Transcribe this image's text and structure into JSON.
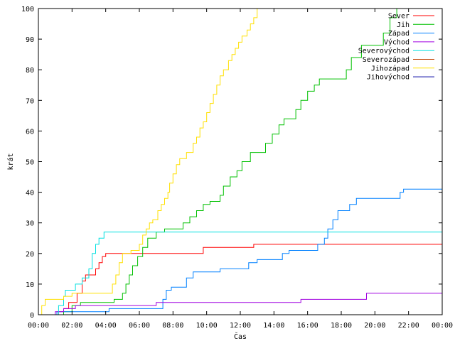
{
  "chart_data": {
    "type": "line",
    "xlabel": "Čas",
    "ylabel": "krát",
    "xlim": [
      0,
      24
    ],
    "ylim": [
      0,
      100
    ],
    "grid": false,
    "legend_position": "top-right",
    "x_ticks": [
      {
        "value": 0,
        "label": "00:00"
      },
      {
        "value": 2,
        "label": "02:00"
      },
      {
        "value": 4,
        "label": "04:00"
      },
      {
        "value": 6,
        "label": "06:00"
      },
      {
        "value": 8,
        "label": "08:00"
      },
      {
        "value": 10,
        "label": "10:00"
      },
      {
        "value": 12,
        "label": "12:00"
      },
      {
        "value": 14,
        "label": "14:00"
      },
      {
        "value": 16,
        "label": "16:00"
      },
      {
        "value": 18,
        "label": "18:00"
      },
      {
        "value": 20,
        "label": "20:00"
      },
      {
        "value": 22,
        "label": "22:00"
      },
      {
        "value": 24,
        "label": "00:00"
      }
    ],
    "y_ticks": [
      {
        "value": 0,
        "label": "0"
      },
      {
        "value": 10,
        "label": "10"
      },
      {
        "value": 20,
        "label": "20"
      },
      {
        "value": 30,
        "label": "30"
      },
      {
        "value": 40,
        "label": "40"
      },
      {
        "value": 50,
        "label": "50"
      },
      {
        "value": 60,
        "label": "60"
      },
      {
        "value": 70,
        "label": "70"
      },
      {
        "value": 80,
        "label": "80"
      },
      {
        "value": 90,
        "label": "90"
      },
      {
        "value": 100,
        "label": "100"
      }
    ],
    "series": [
      {
        "name": "Sever",
        "color": "#ff0000",
        "points": [
          [
            0,
            0
          ],
          [
            1.2,
            0
          ],
          [
            1.2,
            1
          ],
          [
            1.5,
            1
          ],
          [
            1.5,
            2
          ],
          [
            1.8,
            2
          ],
          [
            1.8,
            4
          ],
          [
            2.3,
            4
          ],
          [
            2.3,
            7
          ],
          [
            2.6,
            7
          ],
          [
            2.6,
            11
          ],
          [
            2.8,
            11
          ],
          [
            2.8,
            13
          ],
          [
            3.4,
            13
          ],
          [
            3.4,
            15
          ],
          [
            3.6,
            15
          ],
          [
            3.6,
            17
          ],
          [
            3.8,
            17
          ],
          [
            3.8,
            19
          ],
          [
            4.0,
            19
          ],
          [
            4.0,
            20
          ],
          [
            9.8,
            20
          ],
          [
            9.8,
            22
          ],
          [
            12.8,
            22
          ],
          [
            12.8,
            23
          ],
          [
            24,
            23
          ]
        ]
      },
      {
        "name": "Jih",
        "color": "#00c000",
        "points": [
          [
            0,
            0
          ],
          [
            1.5,
            0
          ],
          [
            1.5,
            1
          ],
          [
            2.0,
            1
          ],
          [
            2.0,
            3
          ],
          [
            2.5,
            3
          ],
          [
            2.5,
            4
          ],
          [
            4.5,
            4
          ],
          [
            4.5,
            5
          ],
          [
            5.0,
            5
          ],
          [
            5.0,
            7
          ],
          [
            5.2,
            7
          ],
          [
            5.2,
            10
          ],
          [
            5.4,
            10
          ],
          [
            5.4,
            13
          ],
          [
            5.6,
            13
          ],
          [
            5.6,
            16
          ],
          [
            5.9,
            16
          ],
          [
            5.9,
            19
          ],
          [
            6.2,
            19
          ],
          [
            6.2,
            22
          ],
          [
            6.5,
            22
          ],
          [
            6.5,
            25
          ],
          [
            7.0,
            25
          ],
          [
            7.0,
            27
          ],
          [
            7.5,
            27
          ],
          [
            7.5,
            28
          ],
          [
            8.6,
            28
          ],
          [
            8.6,
            30
          ],
          [
            9.0,
            30
          ],
          [
            9.0,
            32
          ],
          [
            9.4,
            32
          ],
          [
            9.4,
            34
          ],
          [
            9.8,
            34
          ],
          [
            9.8,
            36
          ],
          [
            10.2,
            36
          ],
          [
            10.2,
            37
          ],
          [
            10.8,
            37
          ],
          [
            10.8,
            39
          ],
          [
            11.0,
            39
          ],
          [
            11.0,
            42
          ],
          [
            11.4,
            42
          ],
          [
            11.4,
            45
          ],
          [
            11.8,
            45
          ],
          [
            11.8,
            47
          ],
          [
            12.1,
            47
          ],
          [
            12.1,
            50
          ],
          [
            12.6,
            50
          ],
          [
            12.6,
            53
          ],
          [
            13.5,
            53
          ],
          [
            13.5,
            56
          ],
          [
            13.9,
            56
          ],
          [
            13.9,
            59
          ],
          [
            14.3,
            59
          ],
          [
            14.3,
            62
          ],
          [
            14.6,
            62
          ],
          [
            14.6,
            64
          ],
          [
            15.3,
            64
          ],
          [
            15.3,
            67
          ],
          [
            15.6,
            67
          ],
          [
            15.6,
            70
          ],
          [
            16.0,
            70
          ],
          [
            16.0,
            73
          ],
          [
            16.4,
            73
          ],
          [
            16.4,
            75
          ],
          [
            16.7,
            75
          ],
          [
            16.7,
            77
          ],
          [
            18.3,
            77
          ],
          [
            18.3,
            80
          ],
          [
            18.6,
            80
          ],
          [
            18.6,
            84
          ],
          [
            19.2,
            84
          ],
          [
            19.2,
            88
          ],
          [
            20.5,
            88
          ],
          [
            20.5,
            92
          ],
          [
            20.9,
            92
          ],
          [
            20.9,
            97
          ],
          [
            21.3,
            97
          ],
          [
            21.3,
            100
          ],
          [
            24,
            100
          ]
        ]
      },
      {
        "name": "Západ",
        "color": "#0080ff",
        "points": [
          [
            0,
            0
          ],
          [
            1.1,
            0
          ],
          [
            1.1,
            1
          ],
          [
            4.2,
            1
          ],
          [
            4.2,
            2
          ],
          [
            7.4,
            2
          ],
          [
            7.4,
            5
          ],
          [
            7.6,
            5
          ],
          [
            7.6,
            8
          ],
          [
            7.9,
            8
          ],
          [
            7.9,
            9
          ],
          [
            8.8,
            9
          ],
          [
            8.8,
            12
          ],
          [
            9.2,
            12
          ],
          [
            9.2,
            14
          ],
          [
            10.8,
            14
          ],
          [
            10.8,
            15
          ],
          [
            12.5,
            15
          ],
          [
            12.5,
            17
          ],
          [
            13.0,
            17
          ],
          [
            13.0,
            18
          ],
          [
            14.5,
            18
          ],
          [
            14.5,
            20
          ],
          [
            14.9,
            20
          ],
          [
            14.9,
            21
          ],
          [
            16.6,
            21
          ],
          [
            16.6,
            23
          ],
          [
            17.0,
            23
          ],
          [
            17.0,
            25
          ],
          [
            17.2,
            25
          ],
          [
            17.2,
            28
          ],
          [
            17.5,
            28
          ],
          [
            17.5,
            31
          ],
          [
            17.8,
            31
          ],
          [
            17.8,
            34
          ],
          [
            18.5,
            34
          ],
          [
            18.5,
            36
          ],
          [
            18.9,
            36
          ],
          [
            18.9,
            38
          ],
          [
            21.5,
            38
          ],
          [
            21.5,
            40
          ],
          [
            21.7,
            40
          ],
          [
            21.7,
            41
          ],
          [
            24,
            41
          ]
        ]
      },
      {
        "name": "Východ",
        "color": "#a000e0",
        "points": [
          [
            0,
            0
          ],
          [
            1.0,
            0
          ],
          [
            1.0,
            1
          ],
          [
            1.5,
            1
          ],
          [
            1.5,
            2
          ],
          [
            2.2,
            2
          ],
          [
            2.2,
            3
          ],
          [
            7.0,
            3
          ],
          [
            7.0,
            4
          ],
          [
            15.6,
            4
          ],
          [
            15.6,
            5
          ],
          [
            19.5,
            5
          ],
          [
            19.5,
            7
          ],
          [
            24,
            7
          ]
        ]
      },
      {
        "name": "Severovýchod",
        "color": "#00e0e0",
        "points": [
          [
            0,
            0
          ],
          [
            1.2,
            0
          ],
          [
            1.2,
            3
          ],
          [
            1.5,
            3
          ],
          [
            1.5,
            6
          ],
          [
            1.6,
            6
          ],
          [
            1.6,
            8
          ],
          [
            2.2,
            8
          ],
          [
            2.2,
            10
          ],
          [
            2.6,
            10
          ],
          [
            2.6,
            12
          ],
          [
            3.0,
            12
          ],
          [
            3.0,
            15
          ],
          [
            3.2,
            15
          ],
          [
            3.2,
            20
          ],
          [
            3.4,
            20
          ],
          [
            3.4,
            23
          ],
          [
            3.6,
            23
          ],
          [
            3.6,
            25
          ],
          [
            3.9,
            25
          ],
          [
            3.9,
            27
          ],
          [
            24,
            27
          ]
        ]
      },
      {
        "name": "Severozápad",
        "color": "#c04000",
        "points": [
          [
            0,
            0
          ],
          [
            24,
            0
          ]
        ]
      },
      {
        "name": "Jihozápad",
        "color": "#ffe000",
        "points": [
          [
            0,
            0
          ],
          [
            0.2,
            0
          ],
          [
            0.2,
            3
          ],
          [
            0.4,
            3
          ],
          [
            0.4,
            5
          ],
          [
            1.5,
            5
          ],
          [
            1.5,
            6
          ],
          [
            2.0,
            6
          ],
          [
            2.0,
            7
          ],
          [
            4.4,
            7
          ],
          [
            4.4,
            10
          ],
          [
            4.6,
            10
          ],
          [
            4.6,
            13
          ],
          [
            4.8,
            13
          ],
          [
            4.8,
            17
          ],
          [
            5.0,
            17
          ],
          [
            5.0,
            20
          ],
          [
            5.5,
            20
          ],
          [
            5.5,
            21
          ],
          [
            6.0,
            21
          ],
          [
            6.0,
            23
          ],
          [
            6.2,
            23
          ],
          [
            6.2,
            26
          ],
          [
            6.4,
            26
          ],
          [
            6.4,
            28
          ],
          [
            6.6,
            28
          ],
          [
            6.6,
            30
          ],
          [
            6.8,
            30
          ],
          [
            6.8,
            31
          ],
          [
            7.1,
            31
          ],
          [
            7.1,
            34
          ],
          [
            7.3,
            34
          ],
          [
            7.3,
            36
          ],
          [
            7.5,
            36
          ],
          [
            7.5,
            38
          ],
          [
            7.7,
            38
          ],
          [
            7.7,
            40
          ],
          [
            7.8,
            40
          ],
          [
            7.8,
            43
          ],
          [
            8.0,
            43
          ],
          [
            8.0,
            46
          ],
          [
            8.2,
            46
          ],
          [
            8.2,
            49
          ],
          [
            8.4,
            49
          ],
          [
            8.4,
            51
          ],
          [
            8.8,
            51
          ],
          [
            8.8,
            53
          ],
          [
            9.2,
            53
          ],
          [
            9.2,
            56
          ],
          [
            9.4,
            56
          ],
          [
            9.4,
            58
          ],
          [
            9.6,
            58
          ],
          [
            9.6,
            61
          ],
          [
            9.8,
            61
          ],
          [
            9.8,
            63
          ],
          [
            10.0,
            63
          ],
          [
            10.0,
            66
          ],
          [
            10.2,
            66
          ],
          [
            10.2,
            69
          ],
          [
            10.4,
            69
          ],
          [
            10.4,
            72
          ],
          [
            10.6,
            72
          ],
          [
            10.6,
            75
          ],
          [
            10.8,
            75
          ],
          [
            10.8,
            78
          ],
          [
            11.0,
            78
          ],
          [
            11.0,
            80
          ],
          [
            11.3,
            80
          ],
          [
            11.3,
            83
          ],
          [
            11.5,
            83
          ],
          [
            11.5,
            85
          ],
          [
            11.7,
            85
          ],
          [
            11.7,
            87
          ],
          [
            11.9,
            87
          ],
          [
            11.9,
            89
          ],
          [
            12.1,
            89
          ],
          [
            12.1,
            91
          ],
          [
            12.4,
            91
          ],
          [
            12.4,
            93
          ],
          [
            12.6,
            93
          ],
          [
            12.6,
            95
          ],
          [
            12.8,
            95
          ],
          [
            12.8,
            97
          ],
          [
            13.0,
            97
          ],
          [
            13.0,
            100
          ]
        ]
      },
      {
        "name": "Jihovýchod",
        "color": "#0000a0",
        "points": [
          [
            0,
            0
          ],
          [
            24,
            0
          ]
        ]
      }
    ]
  }
}
